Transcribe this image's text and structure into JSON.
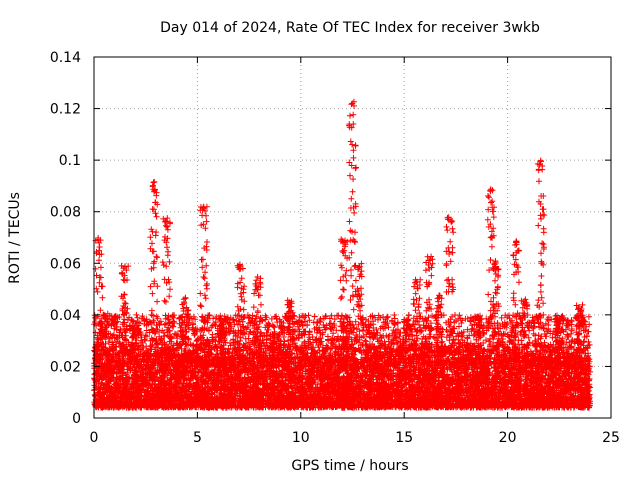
{
  "chart_data": {
    "type": "scatter",
    "title": "Day 014 of 2024, Rate Of TEC Index for receiver 3wkb",
    "xlabel": "GPS time / hours",
    "ylabel": "ROTI / TECUs",
    "xlim": [
      0,
      25
    ],
    "ylim": [
      0,
      0.14
    ],
    "xticks": [
      0,
      5,
      10,
      15,
      20,
      25
    ],
    "yticks": [
      0,
      0.02,
      0.04,
      0.06,
      0.08,
      0.1,
      0.12,
      0.14
    ],
    "xtick_labels": [
      "0",
      "5",
      "10",
      "15",
      "20",
      "25"
    ],
    "ytick_labels": [
      "0",
      "0.02",
      "0.04",
      "0.06",
      "0.08",
      "0.1",
      "0.12",
      "0.14"
    ],
    "grid": true,
    "marker": "plus",
    "color": "#ff0000",
    "series": [
      {
        "name": "ROTI",
        "baseline_band": [
          0.004,
          0.03
        ],
        "x_range": [
          0,
          24
        ],
        "peaks": [
          {
            "x": 0.25,
            "y": 0.07
          },
          {
            "x": 0.5,
            "y": 0.041
          },
          {
            "x": 1.0,
            "y": 0.04
          },
          {
            "x": 1.5,
            "y": 0.059
          },
          {
            "x": 2.0,
            "y": 0.036
          },
          {
            "x": 2.9,
            "y": 0.092
          },
          {
            "x": 3.5,
            "y": 0.078
          },
          {
            "x": 4.4,
            "y": 0.047
          },
          {
            "x": 5.3,
            "y": 0.082
          },
          {
            "x": 6.2,
            "y": 0.039
          },
          {
            "x": 7.1,
            "y": 0.06
          },
          {
            "x": 7.9,
            "y": 0.055
          },
          {
            "x": 9.5,
            "y": 0.046
          },
          {
            "x": 12.1,
            "y": 0.07
          },
          {
            "x": 12.5,
            "y": 0.123
          },
          {
            "x": 12.8,
            "y": 0.06
          },
          {
            "x": 15.2,
            "y": 0.039
          },
          {
            "x": 15.6,
            "y": 0.054
          },
          {
            "x": 16.2,
            "y": 0.063
          },
          {
            "x": 16.7,
            "y": 0.048
          },
          {
            "x": 17.2,
            "y": 0.078
          },
          {
            "x": 18.5,
            "y": 0.04
          },
          {
            "x": 19.2,
            "y": 0.09
          },
          {
            "x": 19.4,
            "y": 0.061
          },
          {
            "x": 20.4,
            "y": 0.07
          },
          {
            "x": 20.8,
            "y": 0.046
          },
          {
            "x": 21.6,
            "y": 0.1
          },
          {
            "x": 22.5,
            "y": 0.04
          },
          {
            "x": 23.5,
            "y": 0.044
          }
        ]
      }
    ]
  }
}
